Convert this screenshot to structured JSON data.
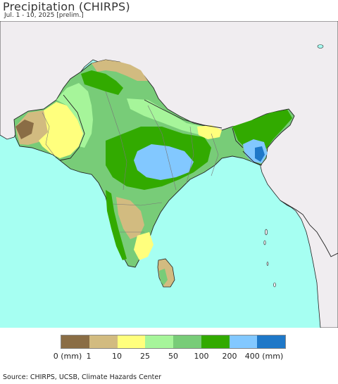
{
  "header": {
    "title": "Precipitation (CHIRPS)",
    "subtitle": "Jul. 1 - 10, 2025 [prelim.]"
  },
  "map": {
    "ocean_color": "#a6fff2",
    "outside_land_color": "#f0edf0",
    "border_color": "#222222",
    "internal_border_color": "#777777"
  },
  "legend": {
    "colors": [
      "#8a6d45",
      "#d2bb80",
      "#ffff7d",
      "#a6f59a",
      "#78cc78",
      "#32aa00",
      "#82c8ff",
      "#1e78c8"
    ],
    "labels": [
      "0 (mm)",
      "1",
      "10",
      "25",
      "50",
      "100",
      "200",
      "400 (mm)"
    ]
  },
  "footer": {
    "source": "Source: CHIRPS, UCSB, Climate Hazards Center"
  }
}
